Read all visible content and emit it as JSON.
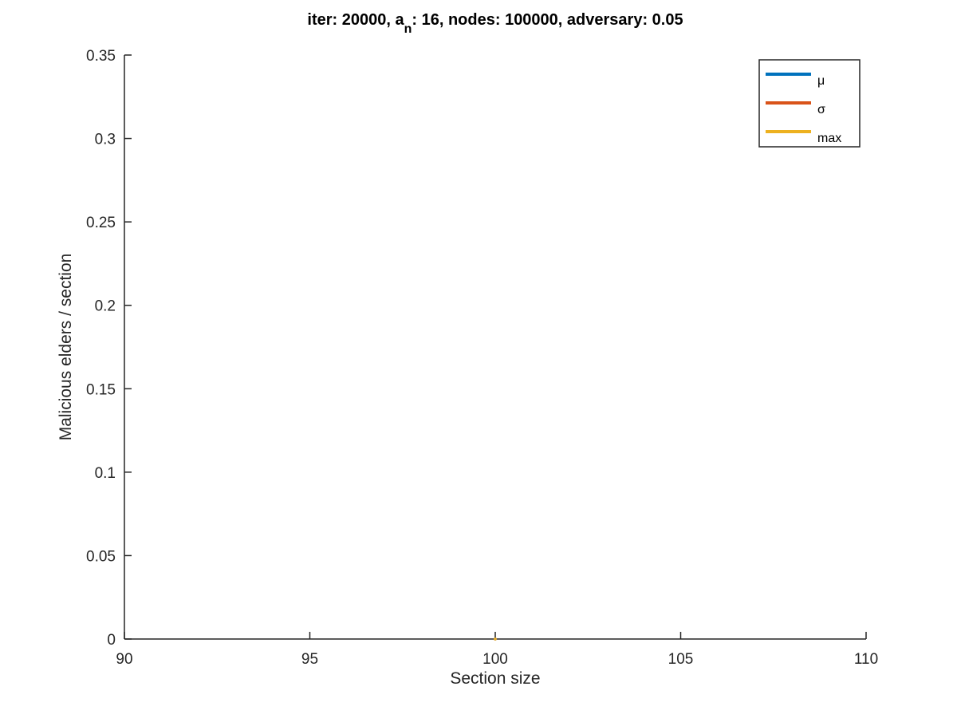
{
  "chart_data": {
    "type": "line",
    "title_parts": {
      "prefix": "iter: 20000, a",
      "subscript": "n",
      "suffix": ": 16, nodes: 100000, adversary: 0.05"
    },
    "xlabel": "Section size",
    "ylabel": "Malicious elders / section",
    "xlim": [
      90,
      110
    ],
    "ylim": [
      0,
      0.35
    ],
    "xticks": [
      90,
      95,
      100,
      105,
      110
    ],
    "xtick_labels": [
      "90",
      "95",
      "100",
      "105",
      "110"
    ],
    "yticks": [
      0,
      0.05,
      0.1,
      0.15,
      0.2,
      0.25,
      0.3,
      0.35
    ],
    "ytick_labels": [
      "0",
      "0.05",
      "0.1",
      "0.15",
      "0.2",
      "0.25",
      "0.3",
      "0.35"
    ],
    "grid": false,
    "legend_position": "top-right",
    "series": [
      {
        "name": "μ",
        "color": "#0072bd",
        "points": [
          [
            100,
            0
          ]
        ]
      },
      {
        "name": "σ",
        "color": "#d95319",
        "points": [
          [
            100,
            0
          ]
        ]
      },
      {
        "name": "max",
        "color": "#edb120",
        "points": [
          [
            100,
            0
          ]
        ]
      }
    ]
  }
}
